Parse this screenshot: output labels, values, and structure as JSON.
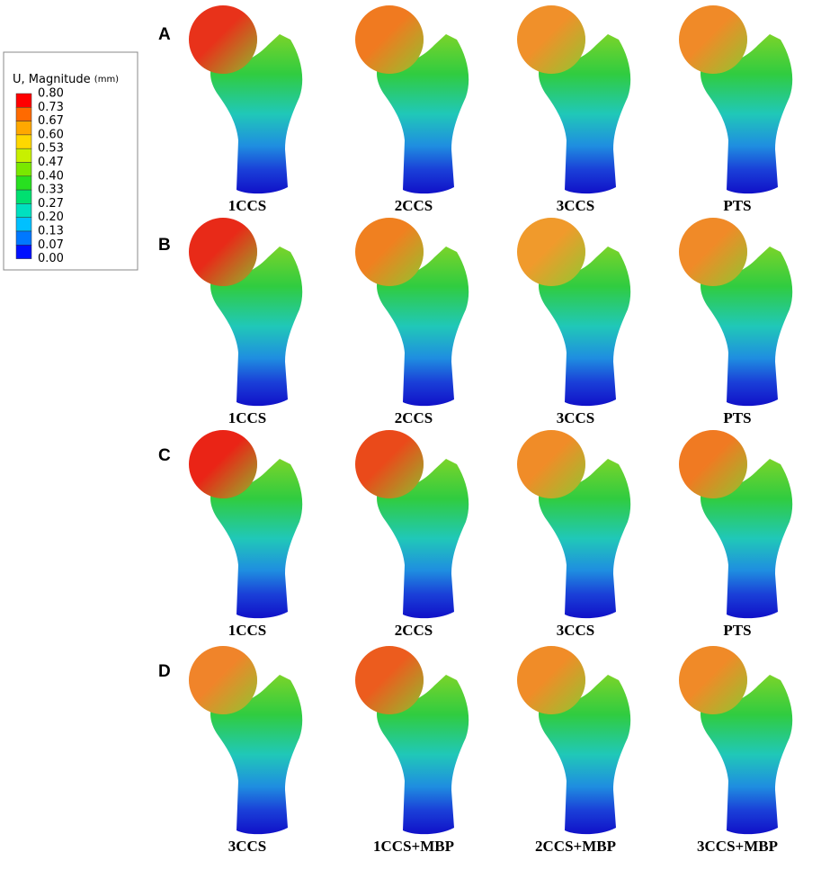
{
  "legend": {
    "title": "U, Magnitude",
    "unit": "(mm)",
    "levels": [
      "0.80",
      "0.73",
      "0.67",
      "0.60",
      "0.53",
      "0.47",
      "0.40",
      "0.33",
      "0.27",
      "0.20",
      "0.13",
      "0.07",
      "0.00"
    ]
  },
  "rows": [
    {
      "label": "A",
      "captions": [
        "1CCS",
        "2CCS",
        "3CCS",
        "PTS"
      ]
    },
    {
      "label": "B",
      "captions": [
        "1CCS",
        "2CCS",
        "3CCS",
        "PTS"
      ]
    },
    {
      "label": "C",
      "captions": [
        "1CCS",
        "2CCS",
        "3CCS",
        "PTS"
      ]
    },
    {
      "label": "D",
      "captions": [
        "3CCS",
        "1CCS+MBP",
        "2CCS+MBP",
        "3CCS+MBP"
      ]
    }
  ]
}
